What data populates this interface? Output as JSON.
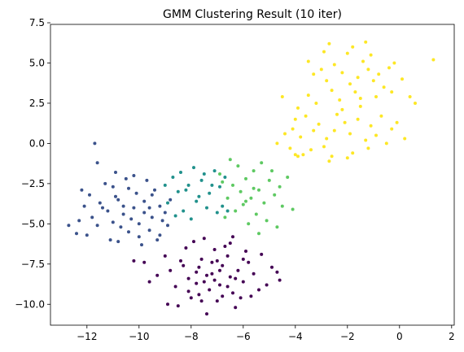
{
  "chart_data": {
    "type": "scatter",
    "title": "GMM Clustering Result (10 iter)",
    "xlabel": "",
    "ylabel": "",
    "xlim": [
      -13.4,
      2.1
    ],
    "ylim": [
      -11.3,
      7.4
    ],
    "xticks": [
      -12,
      -10,
      -8,
      -6,
      -4,
      -2,
      0,
      2
    ],
    "yticks": [
      -10.0,
      -7.5,
      -5.0,
      -2.5,
      0.0,
      2.5,
      5.0,
      7.5
    ],
    "xtick_labels": [
      "−12",
      "−10",
      "−8",
      "−6",
      "−4",
      "−2",
      "0",
      "2"
    ],
    "ytick_labels": [
      "−10.0",
      "−7.5",
      "−5.0",
      "−2.5",
      "0.0",
      "2.5",
      "5.0",
      "7.5"
    ],
    "grid": false,
    "colormap": "viridis",
    "series": [
      {
        "color": "#440154",
        "points": [
          [
            -7.2,
            -8.1
          ],
          [
            -6.8,
            -7.6
          ],
          [
            -7.5,
            -8.6
          ],
          [
            -6.5,
            -8.3
          ],
          [
            -7.0,
            -7.3
          ],
          [
            -7.8,
            -8.0
          ],
          [
            -6.2,
            -7.9
          ],
          [
            -7.3,
            -9.1
          ],
          [
            -6.9,
            -8.8
          ],
          [
            -7.6,
            -7.2
          ],
          [
            -8.1,
            -8.4
          ],
          [
            -6.0,
            -8.6
          ],
          [
            -7.1,
            -6.6
          ],
          [
            -6.4,
            -9.3
          ],
          [
            -8.3,
            -7.6
          ],
          [
            -5.8,
            -7.4
          ],
          [
            -7.7,
            -9.4
          ],
          [
            -6.6,
            -7.0
          ],
          [
            -8.6,
            -8.9
          ],
          [
            -5.6,
            -8.1
          ],
          [
            -7.4,
            -10.6
          ],
          [
            -6.3,
            -10.2
          ],
          [
            -8.0,
            -9.6
          ],
          [
            -5.4,
            -9.1
          ],
          [
            -8.8,
            -7.9
          ],
          [
            -6.7,
            -6.4
          ],
          [
            -7.9,
            -6.1
          ],
          [
            -5.9,
            -6.7
          ],
          [
            -9.3,
            -8.2
          ],
          [
            -5.1,
            -8.8
          ],
          [
            -8.5,
            -10.1
          ],
          [
            -7.0,
            -9.8
          ],
          [
            -6.1,
            -9.6
          ],
          [
            -9.0,
            -7.0
          ],
          [
            -4.9,
            -7.7
          ],
          [
            -7.5,
            -5.9
          ],
          [
            -6.4,
            -5.8
          ],
          [
            -9.6,
            -8.6
          ],
          [
            -4.6,
            -8.5
          ],
          [
            -8.2,
            -6.5
          ],
          [
            -5.3,
            -6.9
          ],
          [
            -8.9,
            -10.0
          ],
          [
            -6.9,
            -7.9
          ],
          [
            -7.2,
            -7.4
          ],
          [
            -6.6,
            -8.9
          ],
          [
            -7.8,
            -8.7
          ],
          [
            -6.0,
            -7.2
          ],
          [
            -7.4,
            -8.2
          ],
          [
            -6.3,
            -8.4
          ],
          [
            -8.4,
            -7.3
          ],
          [
            -5.7,
            -9.5
          ],
          [
            -7.6,
            -9.8
          ],
          [
            -6.8,
            -9.5
          ],
          [
            -9.8,
            -7.4
          ],
          [
            -10.2,
            -7.3
          ],
          [
            -4.7,
            -8.0
          ],
          [
            -8.1,
            -9.2
          ],
          [
            -6.5,
            -6.2
          ],
          [
            -7.1,
            -8.5
          ],
          [
            -7.7,
            -7.7
          ]
        ]
      },
      {
        "color": "#3b528b",
        "points": [
          [
            -10.2,
            -4.0
          ],
          [
            -9.8,
            -3.6
          ],
          [
            -10.6,
            -4.4
          ],
          [
            -9.5,
            -4.6
          ],
          [
            -10.9,
            -3.3
          ],
          [
            -10.0,
            -5.0
          ],
          [
            -9.2,
            -3.9
          ],
          [
            -11.2,
            -4.2
          ],
          [
            -10.4,
            -2.8
          ],
          [
            -9.6,
            -5.4
          ],
          [
            -11.5,
            -3.7
          ],
          [
            -9.0,
            -4.3
          ],
          [
            -10.7,
            -5.2
          ],
          [
            -11.0,
            -2.7
          ],
          [
            -9.4,
            -2.9
          ],
          [
            -11.8,
            -4.6
          ],
          [
            -10.1,
            -3.1
          ],
          [
            -8.9,
            -5.1
          ],
          [
            -11.6,
            -5.1
          ],
          [
            -10.8,
            -6.1
          ],
          [
            -9.9,
            -6.3
          ],
          [
            -12.1,
            -3.9
          ],
          [
            -9.3,
            -6.0
          ],
          [
            -10.5,
            -2.2
          ],
          [
            -11.3,
            -2.5
          ],
          [
            -12.3,
            -4.8
          ],
          [
            -11.7,
            0.0
          ],
          [
            -10.9,
            -1.8
          ],
          [
            -9.7,
            -2.3
          ],
          [
            -12.0,
            -5.7
          ],
          [
            -12.4,
            -5.6
          ],
          [
            -11.1,
            -6.0
          ],
          [
            -8.8,
            -3.5
          ],
          [
            -10.3,
            -4.7
          ],
          [
            -9.1,
            -4.8
          ],
          [
            -11.4,
            -4.0
          ],
          [
            -10.6,
            -3.9
          ],
          [
            -9.8,
            -4.3
          ],
          [
            -12.2,
            -2.9
          ],
          [
            -11.6,
            -1.2
          ],
          [
            -10.0,
            -5.8
          ],
          [
            -9.5,
            -3.2
          ],
          [
            -10.8,
            -3.5
          ],
          [
            -11.9,
            -3.2
          ],
          [
            -12.7,
            -5.1
          ],
          [
            -10.2,
            -2.0
          ],
          [
            -9.6,
            -4.0
          ],
          [
            -11.0,
            -4.9
          ],
          [
            -10.4,
            -5.5
          ],
          [
            -9.2,
            -5.7
          ]
        ]
      },
      {
        "color": "#21918c",
        "points": [
          [
            -8.5,
            -3.0
          ],
          [
            -8.1,
            -2.6
          ],
          [
            -7.8,
            -3.6
          ],
          [
            -8.7,
            -2.1
          ],
          [
            -8.3,
            -4.2
          ],
          [
            -7.6,
            -2.3
          ],
          [
            -7.3,
            -3.1
          ],
          [
            -8.9,
            -3.7
          ],
          [
            -7.9,
            -1.5
          ],
          [
            -7.4,
            -4.0
          ],
          [
            -6.9,
            -2.7
          ],
          [
            -8.0,
            -4.7
          ],
          [
            -7.1,
            -1.7
          ],
          [
            -6.8,
            -3.9
          ],
          [
            -8.6,
            -4.5
          ],
          [
            -6.6,
            -4.2
          ],
          [
            -7.7,
            -3.3
          ],
          [
            -8.2,
            -2.9
          ],
          [
            -7.5,
            -1.9
          ],
          [
            -9.0,
            -2.6
          ],
          [
            -6.7,
            -2.1
          ],
          [
            -7.0,
            -4.3
          ],
          [
            -8.4,
            -1.8
          ],
          [
            -7.2,
            -2.6
          ]
        ]
      },
      {
        "color": "#5ec962",
        "points": [
          [
            -6.1,
            -3.0
          ],
          [
            -5.7,
            -3.4
          ],
          [
            -6.4,
            -2.6
          ],
          [
            -5.4,
            -2.9
          ],
          [
            -6.0,
            -3.8
          ],
          [
            -5.2,
            -3.7
          ],
          [
            -6.6,
            -3.4
          ],
          [
            -5.9,
            -2.2
          ],
          [
            -5.0,
            -2.3
          ],
          [
            -6.3,
            -4.2
          ],
          [
            -5.5,
            -4.4
          ],
          [
            -4.8,
            -3.2
          ],
          [
            -6.8,
            -2.4
          ],
          [
            -5.6,
            -1.7
          ],
          [
            -4.6,
            -2.7
          ],
          [
            -6.2,
            -1.4
          ],
          [
            -5.1,
            -4.8
          ],
          [
            -4.5,
            -3.9
          ],
          [
            -6.7,
            -4.6
          ],
          [
            -5.8,
            -5.0
          ],
          [
            -4.3,
            -2.1
          ],
          [
            -5.3,
            -1.2
          ],
          [
            -6.5,
            -1.0
          ],
          [
            -4.1,
            -4.1
          ],
          [
            -4.9,
            -1.7
          ],
          [
            -6.9,
            -1.9
          ],
          [
            -5.4,
            -5.6
          ],
          [
            -4.7,
            -5.2
          ],
          [
            -5.9,
            -3.6
          ],
          [
            -5.6,
            -2.8
          ]
        ]
      },
      {
        "color": "#fde725",
        "points": [
          [
            -1.6,
            4.1
          ],
          [
            -1.2,
            4.6
          ],
          [
            -1.9,
            3.7
          ],
          [
            -1.0,
            3.9
          ],
          [
            -1.4,
            5.1
          ],
          [
            -2.2,
            4.4
          ],
          [
            -0.8,
            4.3
          ],
          [
            -1.7,
            3.2
          ],
          [
            -2.5,
            4.9
          ],
          [
            -0.6,
            3.5
          ],
          [
            -1.1,
            5.5
          ],
          [
            -2.0,
            5.6
          ],
          [
            -2.8,
            3.9
          ],
          [
            -0.4,
            4.7
          ],
          [
            -1.5,
            2.8
          ],
          [
            -2.6,
            3.3
          ],
          [
            -0.9,
            2.9
          ],
          [
            -3.0,
            4.6
          ],
          [
            -0.2,
            5.0
          ],
          [
            -1.8,
            6.0
          ],
          [
            -2.9,
            5.7
          ],
          [
            -0.3,
            3.2
          ],
          [
            -2.3,
            2.7
          ],
          [
            -1.3,
            6.3
          ],
          [
            -3.3,
            4.3
          ],
          [
            0.1,
            4.0
          ],
          [
            -2.7,
            6.2
          ],
          [
            -3.5,
            5.1
          ],
          [
            0.4,
            2.9
          ],
          [
            1.3,
            5.2
          ],
          [
            -2.5,
            0.8
          ],
          [
            -2.1,
            1.3
          ],
          [
            -2.8,
            0.3
          ],
          [
            -1.9,
            0.6
          ],
          [
            -2.4,
            1.8
          ],
          [
            -3.1,
            1.2
          ],
          [
            -1.6,
            1.5
          ],
          [
            -2.9,
            -0.2
          ],
          [
            -1.3,
            0.2
          ],
          [
            -3.3,
            0.8
          ],
          [
            -2.2,
            2.1
          ],
          [
            -3.6,
            1.7
          ],
          [
            -1.1,
            1.1
          ],
          [
            -3.4,
            -0.4
          ],
          [
            -1.8,
            -0.6
          ],
          [
            -2.6,
            -0.8
          ],
          [
            -0.9,
            0.5
          ],
          [
            -3.8,
            0.4
          ],
          [
            -1.5,
            2.3
          ],
          [
            -3.9,
            2.2
          ],
          [
            -0.7,
            1.7
          ],
          [
            -2.0,
            -0.9
          ],
          [
            -4.1,
            0.9
          ],
          [
            -0.5,
            0.0
          ],
          [
            -3.2,
            2.5
          ],
          [
            -0.3,
            0.9
          ],
          [
            -4.2,
            -0.3
          ],
          [
            -1.2,
            -0.3
          ],
          [
            -3.7,
            -0.7
          ],
          [
            -0.1,
            1.3
          ],
          [
            -4.4,
            0.6
          ],
          [
            -2.7,
            -1.1
          ],
          [
            -4.0,
            1.5
          ],
          [
            0.2,
            0.3
          ],
          [
            -3.5,
            3.0
          ],
          [
            0.6,
            2.5
          ],
          [
            -4.5,
            2.9
          ],
          [
            -4.7,
            0.0
          ],
          [
            -3.9,
            -0.8
          ],
          [
            -4.0,
            -0.7
          ]
        ]
      }
    ]
  }
}
